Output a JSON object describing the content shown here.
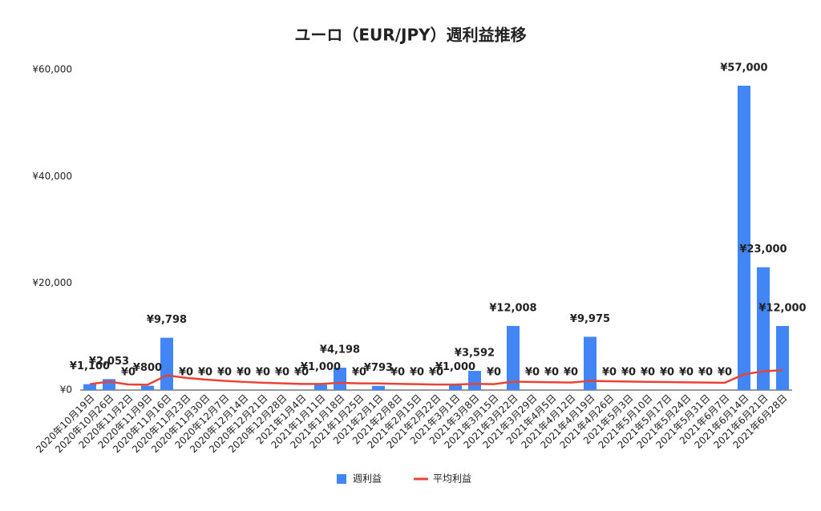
{
  "chart_data": {
    "type": "bar",
    "title": "ユーロ（EUR/JPY）週利益推移",
    "categories": [
      "2020年10月19日",
      "2020年10月26日",
      "2020年11月2日",
      "2020年11月9日",
      "2020年11月16日",
      "2020年11月23日",
      "2020年11月30日",
      "2020年12月7日",
      "2020年12月14日",
      "2020年12月21日",
      "2020年12月28日",
      "2021年1月4日",
      "2021年1月11日",
      "2021年1月18日",
      "2021年1月25日",
      "2021年2月1日",
      "2021年2月8日",
      "2021年2月15日",
      "2021年2月22日",
      "2021年3月1日",
      "2021年3月8日",
      "2021年3月15日",
      "2021年3月22日",
      "2021年3月29日",
      "2021年4月5日",
      "2021年4月12日",
      "2021年4月19日",
      "2021年4月26日",
      "2021年5月3日",
      "2021年5月10日",
      "2021年5月17日",
      "2021年5月24日",
      "2021年5月31日",
      "2021年6月7日",
      "2021年6月14日",
      "2021年6月21日",
      "2021年6月28日"
    ],
    "series": [
      {
        "name": "週利益",
        "color": "#4285f4",
        "type": "bar",
        "values": [
          1100,
          2053,
          0,
          800,
          9798,
          0,
          0,
          0,
          0,
          0,
          0,
          0,
          1000,
          4198,
          0,
          793,
          0,
          0,
          0,
          1000,
          3592,
          0,
          12008,
          0,
          0,
          0,
          9975,
          0,
          0,
          0,
          0,
          0,
          0,
          0,
          57000,
          23000,
          12000
        ],
        "value_labels": [
          "¥1,100",
          "¥2,053",
          "¥0",
          "¥800",
          "¥9,798",
          "¥0",
          "¥0",
          "¥0",
          "¥0",
          "¥0",
          "¥0",
          "¥0",
          "¥1,000",
          "¥4,198",
          "¥0",
          "¥793",
          "¥0",
          "¥0",
          "¥0",
          "¥1,000",
          "¥3,592",
          "¥0",
          "¥12,008",
          "¥0",
          "¥0",
          "¥0",
          "¥9,975",
          "¥0",
          "¥0",
          "¥0",
          "¥0",
          "¥0",
          "¥0",
          "¥0",
          "¥57,000",
          "¥23,000",
          "¥12,000"
        ]
      },
      {
        "name": "平均利益",
        "color": "#ea4335",
        "type": "line",
        "values": [
          1100,
          1577,
          1051,
          988,
          2750,
          2292,
          1964,
          1719,
          1528,
          1375,
          1250,
          1146,
          1135,
          1354,
          1263,
          1234,
          1161,
          1097,
          1039,
          1037,
          1159,
          1106,
          1580,
          1514,
          1454,
          1398,
          1715,
          1654,
          1597,
          1544,
          1494,
          1447,
          1404,
          1362,
          2952,
          3509,
          3738
        ]
      }
    ],
    "ylim": [
      0,
      60000
    ],
    "yticks": [
      {
        "value": 0,
        "label": "¥0"
      },
      {
        "value": 20000,
        "label": "¥20,000"
      },
      {
        "value": 40000,
        "label": "¥40,000"
      },
      {
        "value": 60000,
        "label": "¥60,000"
      }
    ],
    "legend": "bottom"
  }
}
